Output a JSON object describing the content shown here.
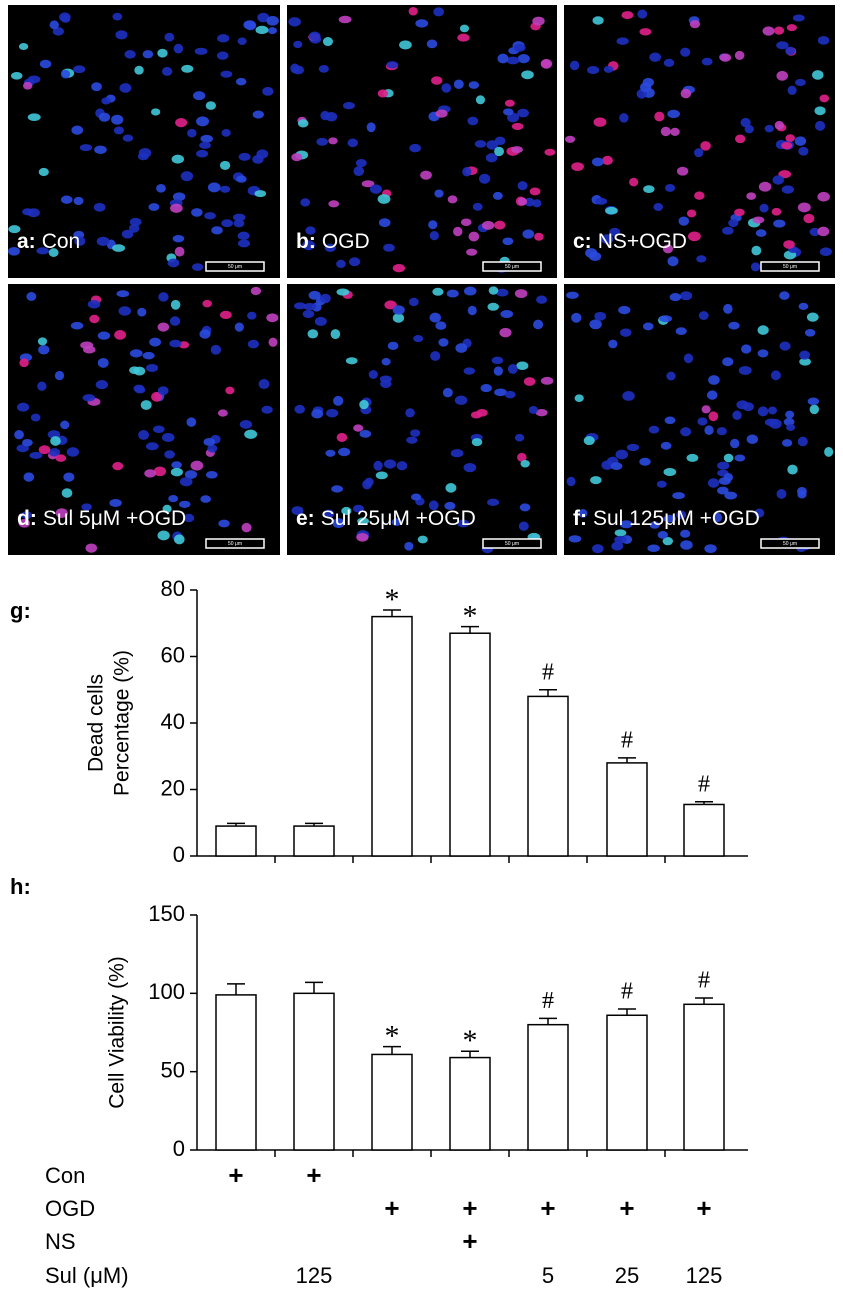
{
  "panels": [
    {
      "letter": "a:",
      "text": "Con",
      "scale_bar": "50 μm"
    },
    {
      "letter": "b:",
      "text": "OGD",
      "scale_bar": "50 μm"
    },
    {
      "letter": "c:",
      "text": "NS+OGD",
      "scale_bar": "50 μm"
    },
    {
      "letter": "d:",
      "text": "Sul 5μM +OGD",
      "scale_bar": "50 μm"
    },
    {
      "letter": "e:",
      "text": "Sul 25μM +OGD",
      "scale_bar": "50 μm"
    },
    {
      "letter": "f:",
      "text": "Sul 125μM +OGD",
      "scale_bar": "50 μm"
    }
  ],
  "chart_data": [
    {
      "type": "bar",
      "label": "g:",
      "ylabel": [
        "Dead cells",
        "Percentage (%)"
      ],
      "categories": [
        null,
        null,
        null,
        null,
        null,
        null,
        null
      ],
      "values": [
        9,
        9,
        72,
        67,
        48,
        28,
        15.5
      ],
      "errors": [
        0.8,
        0.8,
        2,
        2,
        2,
        1.5,
        0.8
      ],
      "annotations": [
        null,
        null,
        "*",
        "*",
        "#",
        "#",
        "#"
      ],
      "color": "#ffffff",
      "ylim": [
        0,
        80
      ],
      "yticks": [
        0,
        20,
        40,
        60,
        80
      ]
    },
    {
      "type": "bar",
      "label": "h:",
      "ylabel": [
        "Cell Viability (%)"
      ],
      "categories": [
        null,
        null,
        null,
        null,
        null,
        null,
        null
      ],
      "values": [
        99,
        100,
        61,
        59,
        80,
        86,
        93
      ],
      "errors": [
        7,
        7,
        5,
        4,
        4,
        4,
        4
      ],
      "annotations": [
        null,
        null,
        "*",
        "*",
        "#",
        "#",
        "#"
      ],
      "color": "#ffffff",
      "ylim": [
        0,
        150
      ],
      "yticks": [
        0,
        50,
        100,
        150
      ]
    }
  ],
  "treatment_table": {
    "rows": [
      {
        "label": "Con",
        "cells": [
          "+",
          "+",
          null,
          null,
          null,
          null,
          null
        ]
      },
      {
        "label": "OGD",
        "cells": [
          null,
          null,
          "+",
          "+",
          "+",
          "+",
          "+"
        ]
      },
      {
        "label": "NS",
        "cells": [
          null,
          null,
          null,
          "+",
          null,
          null,
          null
        ]
      },
      {
        "label": "Sul (μM)",
        "cells": [
          null,
          "125",
          null,
          null,
          "5",
          "25",
          "125"
        ]
      }
    ]
  }
}
